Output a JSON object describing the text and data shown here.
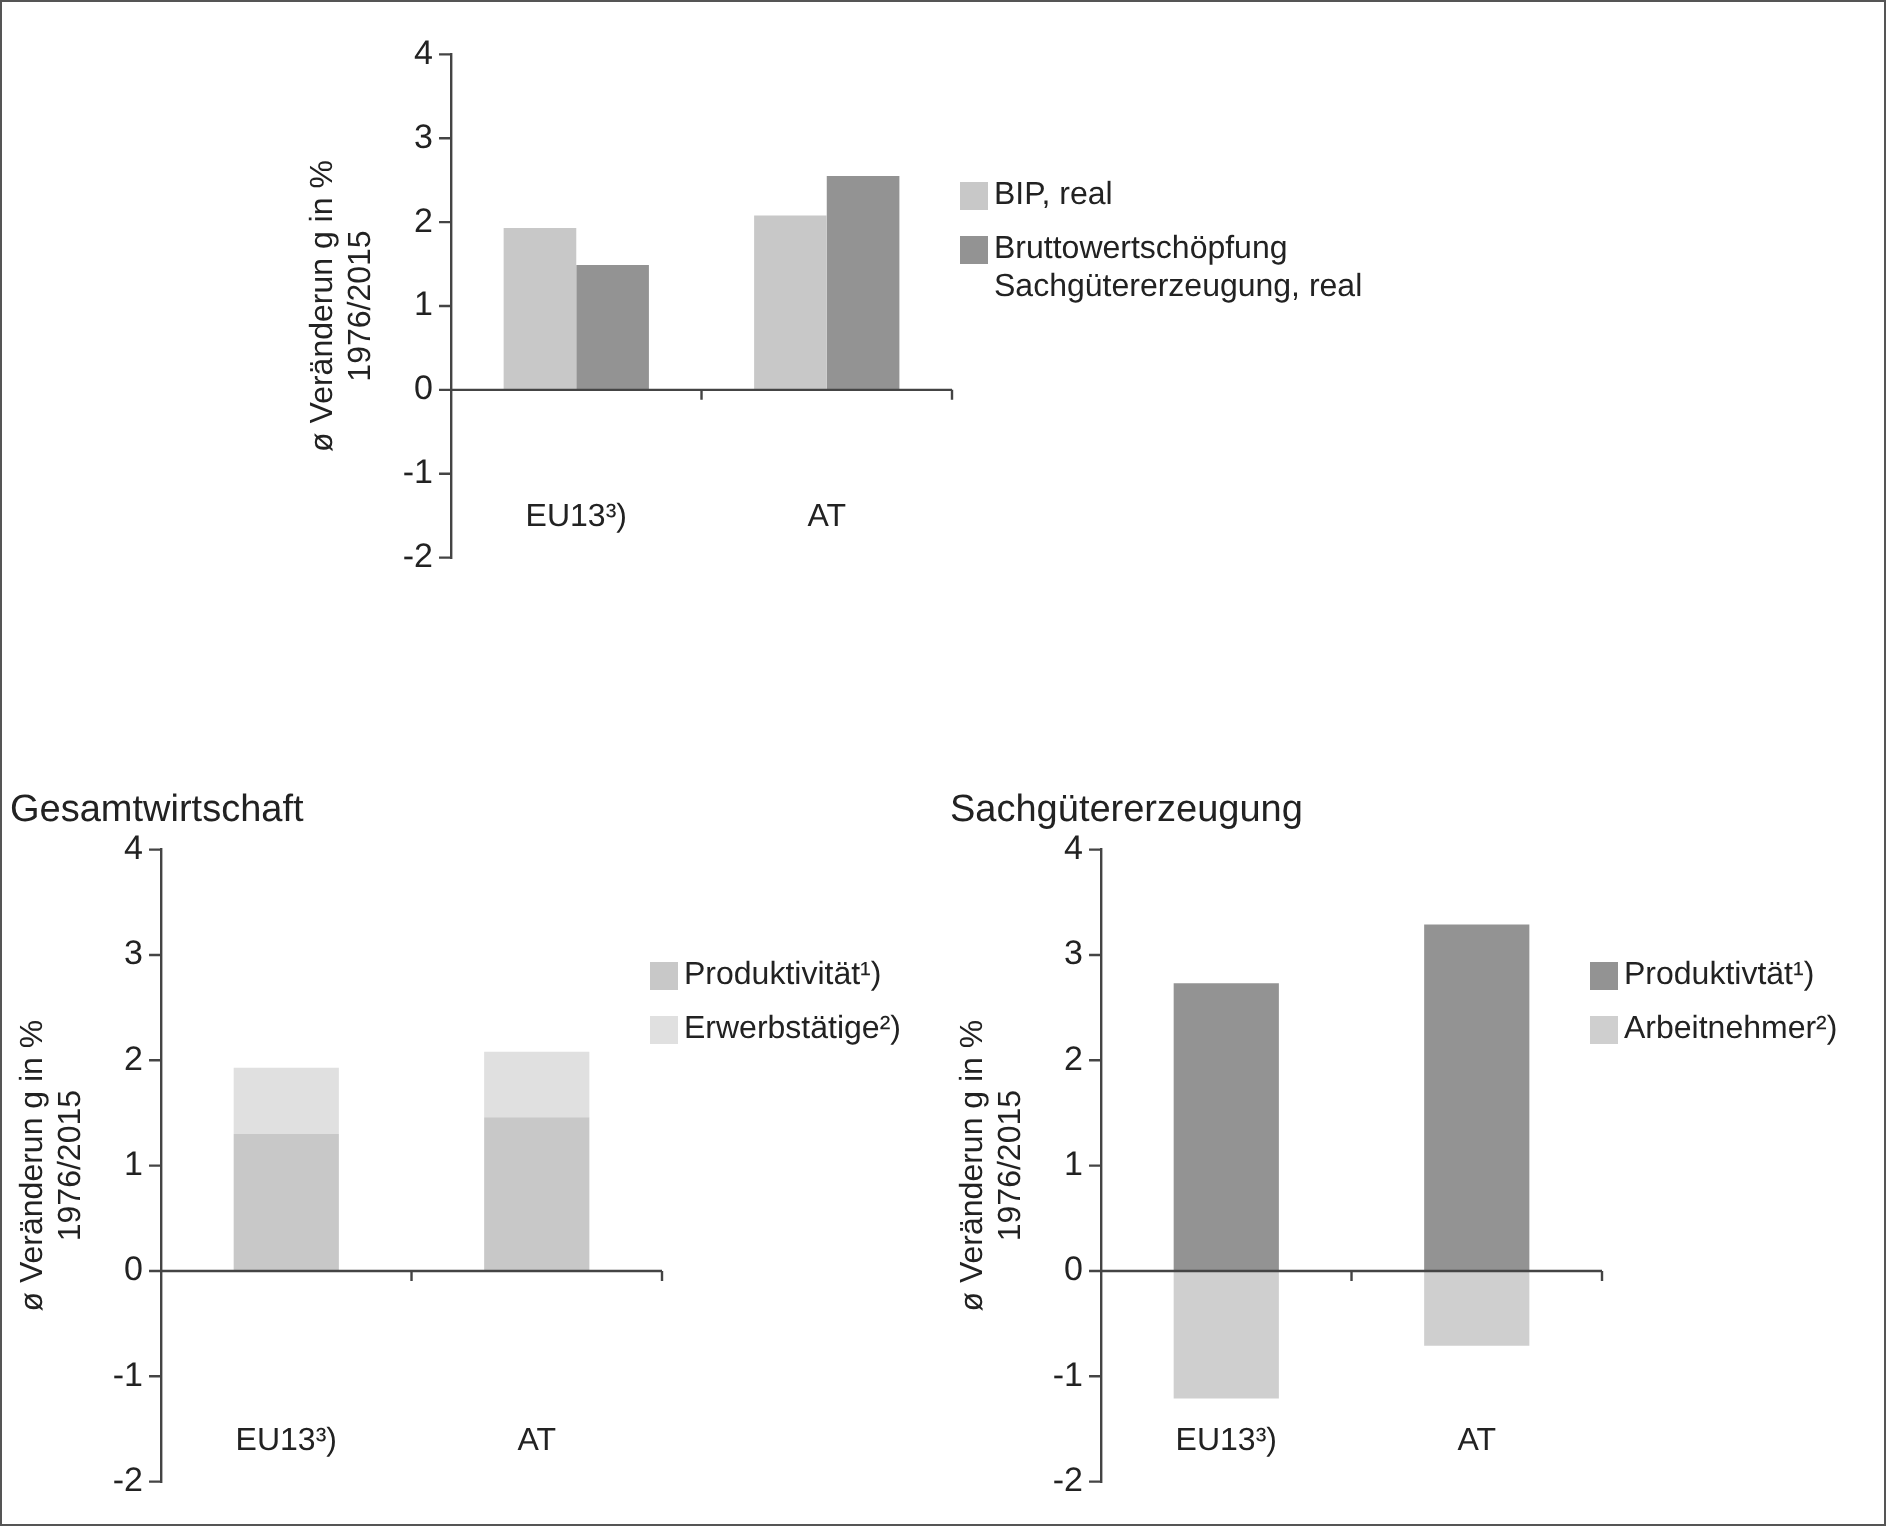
{
  "chart_data": [
    {
      "type": "bar",
      "ylabel": "ø Veränderun g in %\n1976/2015",
      "categories": [
        "EU13³)",
        "AT"
      ],
      "series": [
        {
          "name": "BIP, real",
          "color": "#c8c8c8",
          "values": [
            1.93,
            2.08
          ]
        },
        {
          "name": "Bruttowertschöpfung\nSachgütererzeugung, real",
          "color": "#939393",
          "values": [
            1.49,
            2.55
          ]
        }
      ],
      "ylim": [
        -2,
        4
      ],
      "yticks": [
        -2,
        -1,
        0,
        1,
        2,
        3,
        4
      ],
      "legend": "right"
    },
    {
      "type": "bar",
      "title": "Gesamtwirtschaft",
      "ylabel": "ø Veränderun g in %\n1976/2015",
      "categories": [
        "EU13³)",
        "AT"
      ],
      "stacked": true,
      "series": [
        {
          "name": "Produktivität¹)",
          "color": "#c8c8c8",
          "values": [
            1.3,
            1.46
          ]
        },
        {
          "name": "Erwerbstätige²)",
          "color": "#e0e0e0",
          "values": [
            0.63,
            0.62
          ]
        }
      ],
      "ylim": [
        -2,
        4
      ],
      "yticks": [
        -2,
        -1,
        0,
        1,
        2,
        3,
        4
      ],
      "legend": "right"
    },
    {
      "type": "bar",
      "title": "Sachgütererzeugung",
      "ylabel": "ø Veränderun g in %\n1976/2015",
      "categories": [
        "EU13³)",
        "AT"
      ],
      "stacked": true,
      "series": [
        {
          "name": "Produktivtät¹)",
          "color": "#939393",
          "values": [
            2.73,
            3.29
          ]
        },
        {
          "name": "Arbeitnehmer²)",
          "color": "#cfcfcf",
          "values": [
            -1.21,
            -0.71
          ]
        }
      ],
      "ylim": [
        -2,
        4
      ],
      "yticks": [
        -2,
        -1,
        0,
        1,
        2,
        3,
        4
      ],
      "legend": "right"
    }
  ]
}
